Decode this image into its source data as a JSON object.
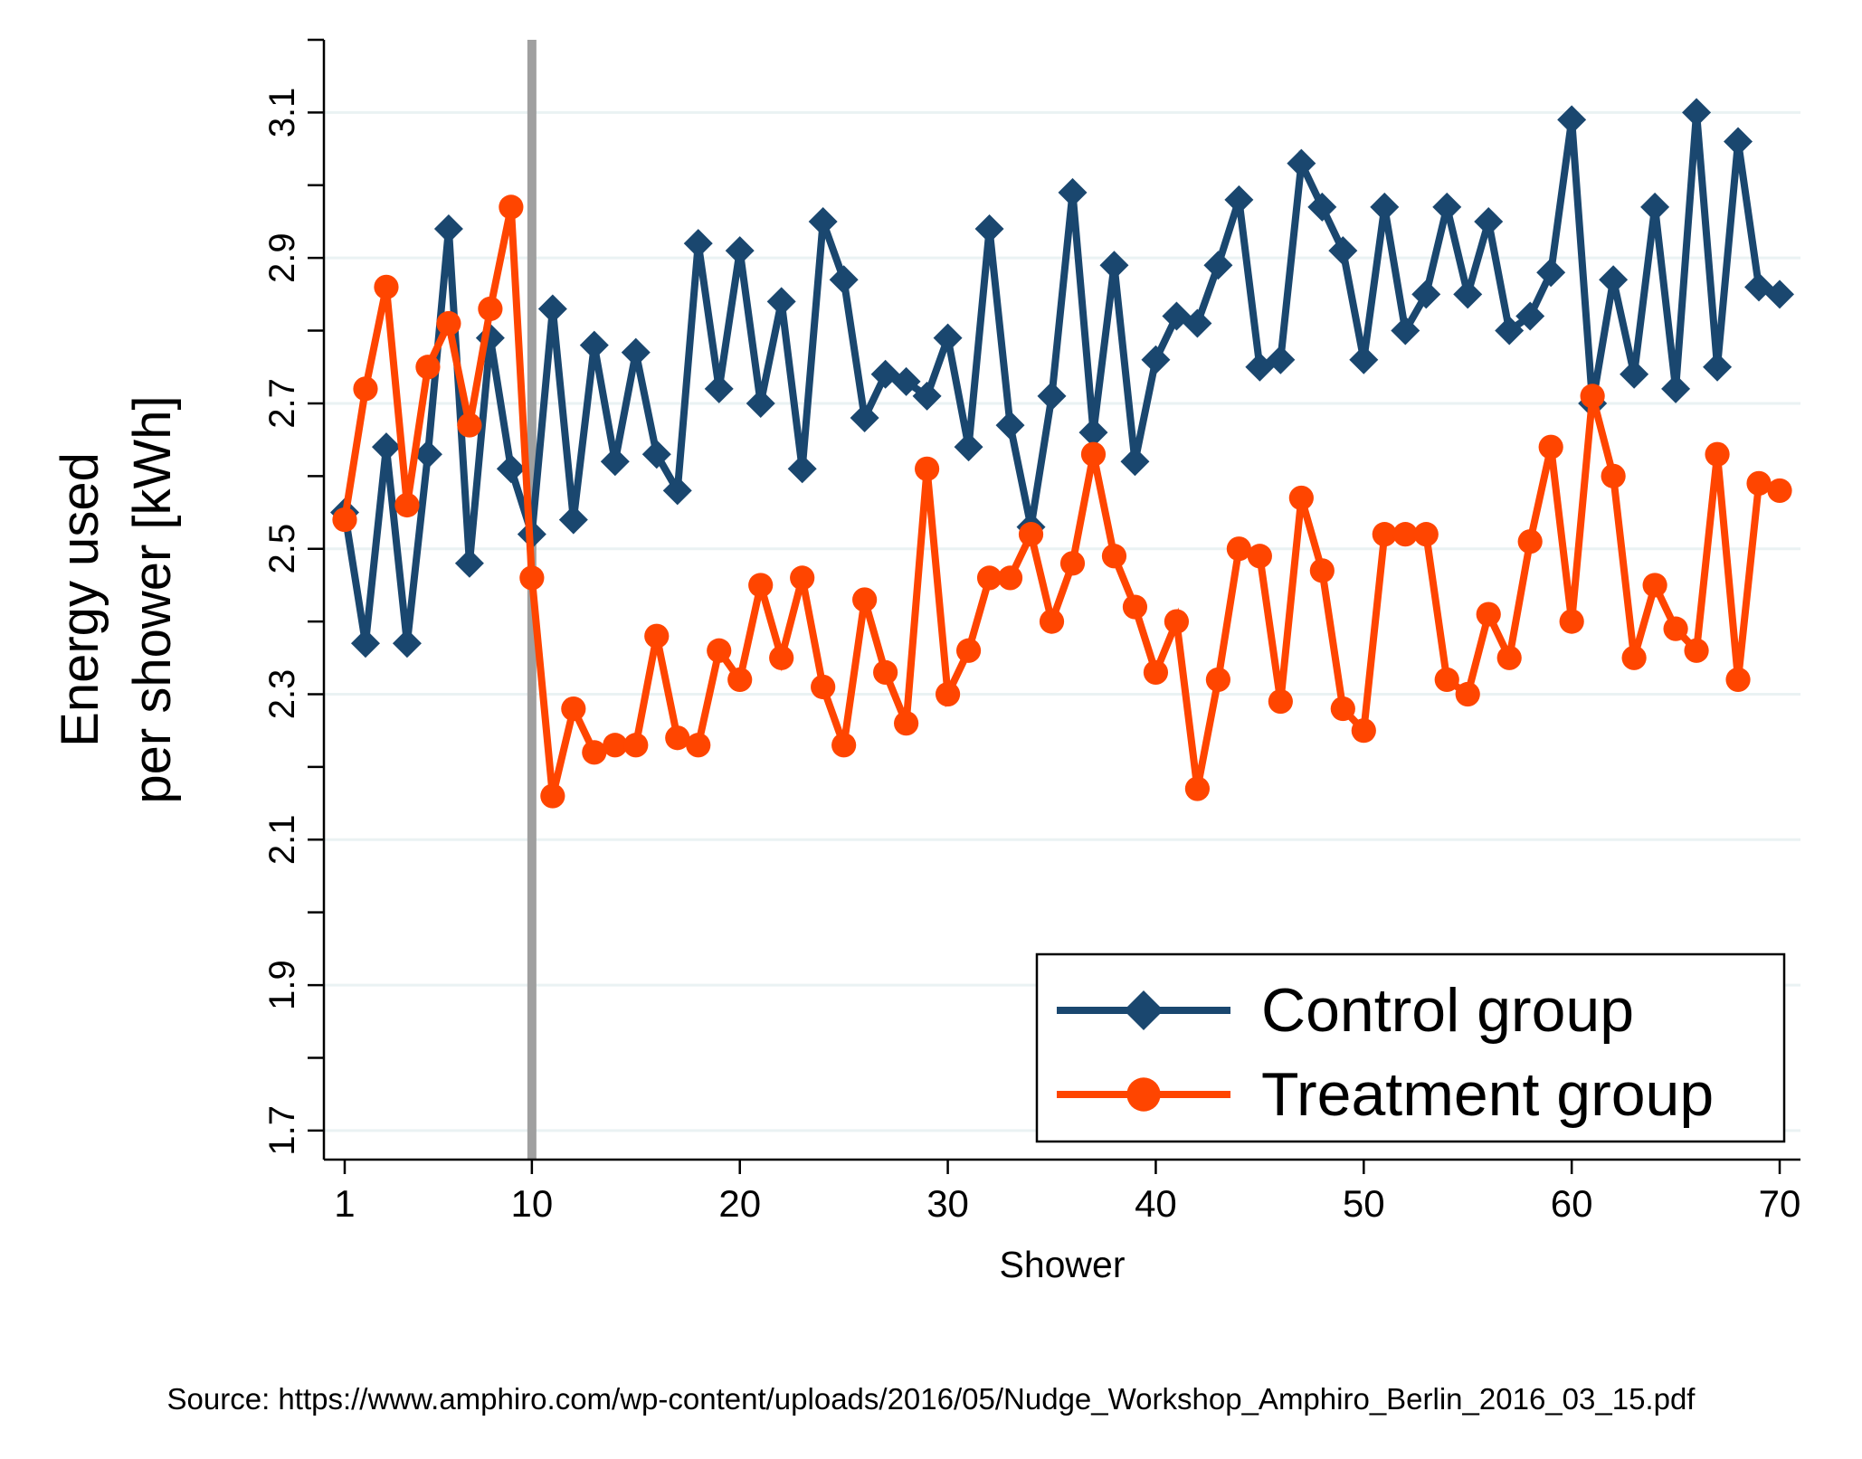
{
  "chart_data": {
    "type": "line",
    "title": "",
    "xlabel": "Shower",
    "ylabel_lines": [
      "Energy used",
      "per shower [kWh]"
    ],
    "xlim": [
      0,
      71
    ],
    "ylim": [
      1.66,
      3.2
    ],
    "x_ticks": [
      1,
      10,
      20,
      30,
      40,
      50,
      60,
      70
    ],
    "x_tick_labels": [
      "1",
      "10",
      "20",
      "30",
      "40",
      "50",
      "60",
      "70"
    ],
    "y_ticks_labeled": [
      1.7,
      1.9,
      2.1,
      2.3,
      2.5,
      2.7,
      2.9,
      3.1
    ],
    "y_tick_labels": [
      "1.7",
      "1.9",
      "2.1",
      "2.3",
      "2.5",
      "2.7",
      "2.9",
      "3.1"
    ],
    "y_ticks_minor": [
      1.8,
      2.0,
      2.2,
      2.4,
      2.6,
      2.8,
      3.0,
      3.2
    ],
    "gridlines_y": [
      1.7,
      1.9,
      2.1,
      2.3,
      2.5,
      2.7,
      2.9,
      3.1
    ],
    "grid": true,
    "reference_line_x": 10,
    "legend_position": "bottom-right",
    "x": [
      1,
      2,
      3,
      4,
      5,
      6,
      7,
      8,
      9,
      10,
      11,
      12,
      13,
      14,
      15,
      16,
      17,
      18,
      19,
      20,
      21,
      22,
      23,
      24,
      25,
      26,
      27,
      28,
      29,
      30,
      31,
      32,
      33,
      34,
      35,
      36,
      37,
      38,
      39,
      40,
      41,
      42,
      43,
      44,
      45,
      46,
      47,
      48,
      49,
      50,
      51,
      52,
      53,
      54,
      55,
      56,
      57,
      58,
      59,
      60,
      61,
      62,
      63,
      64,
      65,
      66,
      67,
      68,
      69,
      70
    ],
    "series": [
      {
        "name": "Control group",
        "color": "#1a476f",
        "marker": "diamond",
        "values": [
          2.55,
          2.37,
          2.64,
          2.37,
          2.63,
          2.94,
          2.48,
          2.79,
          2.61,
          2.52,
          2.83,
          2.54,
          2.78,
          2.62,
          2.77,
          2.63,
          2.58,
          2.92,
          2.72,
          2.91,
          2.7,
          2.84,
          2.61,
          2.95,
          2.87,
          2.68,
          2.74,
          2.73,
          2.71,
          2.79,
          2.64,
          2.94,
          2.67,
          2.53,
          2.71,
          2.99,
          2.66,
          2.89,
          2.62,
          2.76,
          2.82,
          2.81,
          2.89,
          2.98,
          2.75,
          2.76,
          3.03,
          2.97,
          2.91,
          2.76,
          2.97,
          2.8,
          2.85,
          2.97,
          2.85,
          2.95,
          2.8,
          2.82,
          2.88,
          3.09,
          2.7,
          2.87,
          2.74,
          2.97,
          2.72,
          3.1,
          2.75,
          3.06,
          2.86,
          2.85
        ]
      },
      {
        "name": "Treatment group",
        "color": "#ff4500",
        "marker": "circle",
        "values": [
          2.54,
          2.72,
          2.86,
          2.56,
          2.75,
          2.81,
          2.67,
          2.83,
          2.97,
          2.46,
          2.16,
          2.28,
          2.22,
          2.23,
          2.23,
          2.38,
          2.24,
          2.23,
          2.36,
          2.32,
          2.45,
          2.35,
          2.46,
          2.31,
          2.23,
          2.43,
          2.33,
          2.26,
          2.61,
          2.3,
          2.36,
          2.46,
          2.46,
          2.52,
          2.4,
          2.48,
          2.63,
          2.49,
          2.42,
          2.33,
          2.4,
          2.17,
          2.32,
          2.5,
          2.49,
          2.29,
          2.57,
          2.47,
          2.28,
          2.25,
          2.52,
          2.52,
          2.52,
          2.32,
          2.3,
          2.41,
          2.35,
          2.51,
          2.64,
          2.4,
          2.71,
          2.6,
          2.35,
          2.45,
          2.39,
          2.36,
          2.63,
          2.32,
          2.59,
          2.58
        ]
      }
    ]
  },
  "source_text": "Source: https://www.amphiro.com/wp-content/uploads/2016/05/Nudge_Workshop_Amphiro_Berlin_2016_03_15.pdf"
}
